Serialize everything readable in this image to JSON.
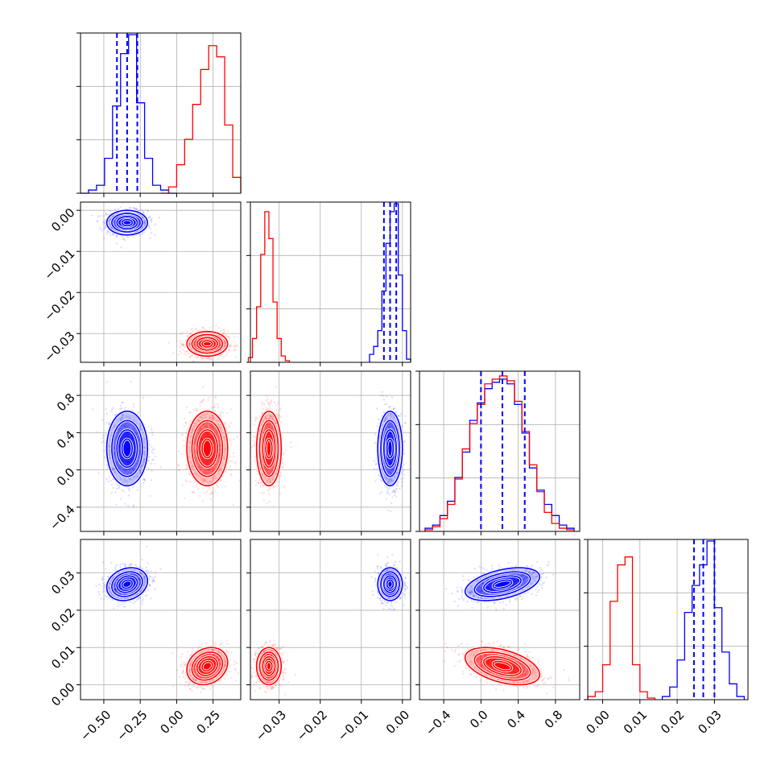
{
  "chart_data": {
    "type": "corner",
    "grid": true,
    "colors": {
      "series_a": "#0000ff",
      "series_b": "#ff0000"
    },
    "parameters": [
      {
        "range": [
          -0.66,
          0.44
        ],
        "ticks": [
          {
            "v": -0.5,
            "label": "−0.50"
          },
          {
            "v": -0.25,
            "label": "−0.25"
          },
          {
            "v": 0.0,
            "label": "0.00"
          },
          {
            "v": 0.25,
            "label": "0.25"
          }
        ],
        "quantiles": [
          -0.41,
          -0.34,
          -0.27
        ]
      },
      {
        "range": [
          -0.037,
          0.002
        ],
        "ticks": [
          {
            "v": -0.03,
            "label": "−0.03"
          },
          {
            "v": -0.02,
            "label": "−0.02"
          },
          {
            "v": -0.01,
            "label": "−0.01"
          },
          {
            "v": 0.0,
            "label": "0.00"
          }
        ],
        "quantiles": [
          -0.0045,
          -0.003,
          -0.0015
        ]
      },
      {
        "range": [
          -0.66,
          1.06
        ],
        "ticks": [
          {
            "v": -0.4,
            "label": "−0.4"
          },
          {
            "v": 0.0,
            "label": "0.0"
          },
          {
            "v": 0.4,
            "label": "0.4"
          },
          {
            "v": 0.8,
            "label": "0.8"
          }
        ],
        "quantiles": [
          0.0,
          0.23,
          0.47
        ]
      },
      {
        "range": [
          -0.004,
          0.039
        ],
        "ticks": [
          {
            "v": 0.0,
            "label": "0.00"
          },
          {
            "v": 0.01,
            "label": "0.01"
          },
          {
            "v": 0.02,
            "label": "0.02"
          },
          {
            "v": 0.03,
            "label": "0.03"
          }
        ],
        "quantiles": [
          0.0245,
          0.027,
          0.03
        ]
      }
    ],
    "series": [
      {
        "color": "blue",
        "means": [
          -0.34,
          -0.003,
          0.23,
          0.027
        ],
        "sds": [
          0.07,
          0.0015,
          0.2,
          0.0022
        ],
        "histograms": [
          {
            "edges": [
              -0.66,
              -0.605,
              -0.55,
              -0.495,
              -0.44,
              -0.385,
              -0.33,
              -0.275,
              -0.22,
              -0.165,
              -0.11,
              -0.055,
              0.0
            ],
            "counts": [
              0.0,
              0.02,
              0.05,
              0.22,
              0.55,
              0.88,
              1.0,
              0.57,
              0.22,
              0.05,
              0.02,
              0.0
            ]
          },
          {
            "edges": [
              -0.008,
              -0.007,
              -0.006,
              -0.005,
              -0.004,
              -0.003,
              -0.002,
              -0.001,
              0.0,
              0.001,
              0.002
            ],
            "counts": [
              0.05,
              0.1,
              0.2,
              0.45,
              0.75,
              0.95,
              1.0,
              0.55,
              0.2,
              0.02
            ]
          },
          {
            "edges": [
              -0.6,
              -0.52,
              -0.44,
              -0.36,
              -0.28,
              -0.2,
              -0.12,
              -0.04,
              0.04,
              0.12,
              0.2,
              0.28,
              0.36,
              0.44,
              0.52,
              0.6,
              0.68,
              0.76,
              0.84,
              0.92,
              1.0
            ],
            "counts": [
              0.02,
              0.04,
              0.1,
              0.19,
              0.34,
              0.5,
              0.7,
              0.81,
              0.9,
              0.94,
              0.96,
              0.93,
              0.8,
              0.62,
              0.4,
              0.26,
              0.17,
              0.1,
              0.04,
              0.02
            ]
          },
          {
            "edges": [
              0.016,
              0.018,
              0.02,
              0.022,
              0.024,
              0.026,
              0.028,
              0.03,
              0.032,
              0.034,
              0.036,
              0.038
            ],
            "counts": [
              0.02,
              0.08,
              0.25,
              0.55,
              0.72,
              0.85,
              1.0,
              0.58,
              0.3,
              0.1,
              0.02
            ]
          }
        ]
      },
      {
        "color": "red",
        "means": [
          0.21,
          -0.0325,
          0.23,
          0.005
        ],
        "sds": [
          0.07,
          0.0015,
          0.2,
          0.0025
        ],
        "histograms": [
          {
            "edges": [
              -0.11,
              -0.055,
              0.0,
              0.055,
              0.11,
              0.165,
              0.22,
              0.275,
              0.33,
              0.385,
              0.44
            ],
            "counts": [
              0.0,
              0.04,
              0.18,
              0.34,
              0.56,
              0.78,
              0.93,
              0.86,
              0.43,
              0.1
            ]
          },
          {
            "edges": [
              -0.0375,
              -0.0365,
              -0.0355,
              -0.0345,
              -0.0335,
              -0.0325,
              -0.0315,
              -0.0305,
              -0.0295,
              -0.0285,
              -0.0275
            ],
            "counts": [
              0.03,
              0.15,
              0.35,
              0.68,
              0.95,
              0.78,
              0.38,
              0.15,
              0.04,
              0.01
            ]
          },
          {
            "edges": [
              -0.6,
              -0.52,
              -0.44,
              -0.36,
              -0.28,
              -0.2,
              -0.12,
              -0.04,
              0.04,
              0.12,
              0.2,
              0.28,
              0.36,
              0.44,
              0.52,
              0.6,
              0.68,
              0.76,
              0.84,
              0.92,
              1.0
            ],
            "counts": [
              0.01,
              0.03,
              0.08,
              0.17,
              0.33,
              0.52,
              0.68,
              0.8,
              0.93,
              0.96,
              0.98,
              0.95,
              0.82,
              0.63,
              0.42,
              0.25,
              0.12,
              0.05,
              0.02,
              0.01
            ]
          },
          {
            "edges": [
              -0.004,
              -0.002,
              0.0,
              0.002,
              0.004,
              0.006,
              0.008,
              0.01,
              0.012,
              0.014
            ],
            "counts": [
              0.02,
              0.05,
              0.22,
              0.62,
              0.85,
              0.9,
              0.22,
              0.05,
              0.01
            ]
          }
        ]
      }
    ],
    "correlations": [
      {
        "pair": [
          0,
          3
        ],
        "blue": 0.2,
        "red": 0.2
      },
      {
        "pair": [
          2,
          3
        ],
        "blue": 0.45,
        "red": -0.45
      }
    ]
  }
}
